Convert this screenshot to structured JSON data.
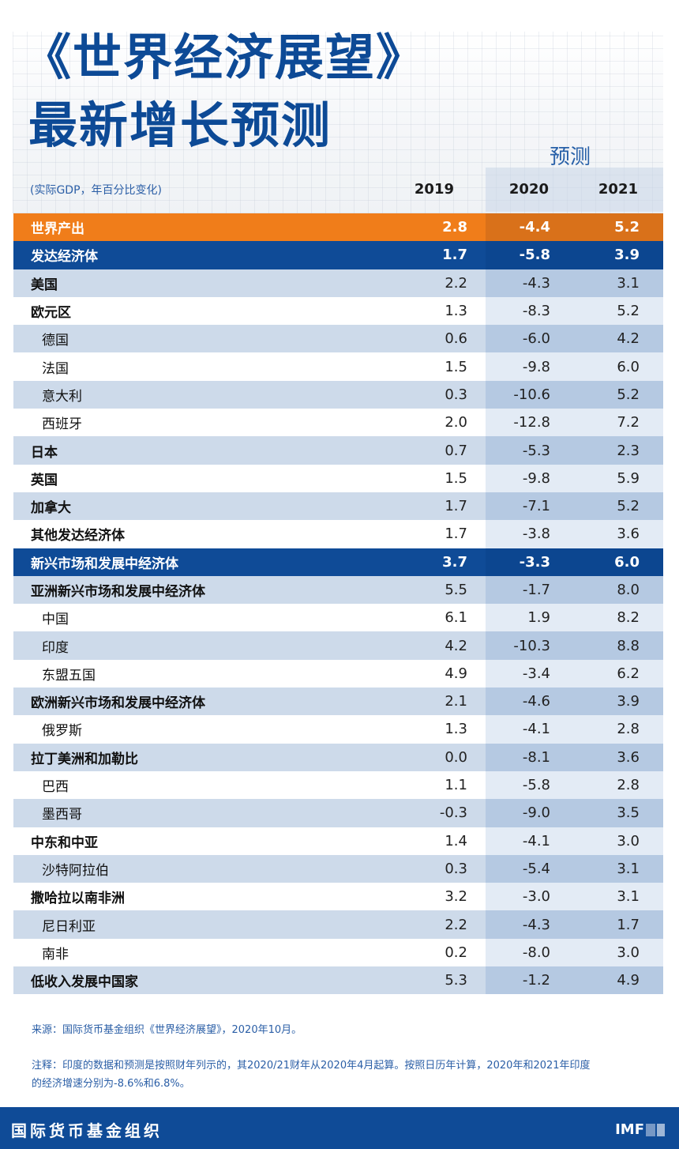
{
  "header": {
    "title_line1": "《世界经济展望》",
    "title_line2": "最新增长预测",
    "forecast_label": "预测",
    "units": "(实际GDP，年百分比变化)",
    "columns": [
      "2019",
      "2020",
      "2021"
    ]
  },
  "table": {
    "rows": [
      {
        "name": "世界产出",
        "v2019": "2.8",
        "v2020": "-4.4",
        "v2021": "5.2",
        "style": "world"
      },
      {
        "name": "发达经济体",
        "v2019": "1.7",
        "v2020": "-5.8",
        "v2021": "3.9",
        "style": "group"
      },
      {
        "name": "美国",
        "v2019": "2.2",
        "v2020": "-4.3",
        "v2021": "3.1",
        "style": "odd"
      },
      {
        "name": "欧元区",
        "v2019": "1.3",
        "v2020": "-8.3",
        "v2021": "5.2",
        "style": "even"
      },
      {
        "name": "德国",
        "v2019": "0.6",
        "v2020": "-6.0",
        "v2021": "4.2",
        "style": "odd indent"
      },
      {
        "name": "法国",
        "v2019": "1.5",
        "v2020": "-9.8",
        "v2021": "6.0",
        "style": "even indent"
      },
      {
        "name": "意大利",
        "v2019": "0.3",
        "v2020": "-10.6",
        "v2021": "5.2",
        "style": "odd indent"
      },
      {
        "name": "西班牙",
        "v2019": "2.0",
        "v2020": "-12.8",
        "v2021": "7.2",
        "style": "even indent"
      },
      {
        "name": "日本",
        "v2019": "0.7",
        "v2020": "-5.3",
        "v2021": "2.3",
        "style": "odd"
      },
      {
        "name": "英国",
        "v2019": "1.5",
        "v2020": "-9.8",
        "v2021": "5.9",
        "style": "even"
      },
      {
        "name": "加拿大",
        "v2019": "1.7",
        "v2020": "-7.1",
        "v2021": "5.2",
        "style": "odd"
      },
      {
        "name": "其他发达经济体",
        "v2019": "1.7",
        "v2020": "-3.8",
        "v2021": "3.6",
        "style": "even"
      },
      {
        "name": "新兴市场和发展中经济体",
        "v2019": "3.7",
        "v2020": "-3.3",
        "v2021": "6.0",
        "style": "group"
      },
      {
        "name": "亚洲新兴市场和发展中经济体",
        "v2019": "5.5",
        "v2020": "-1.7",
        "v2021": "8.0",
        "style": "odd"
      },
      {
        "name": "中国",
        "v2019": "6.1",
        "v2020": "1.9",
        "v2021": "8.2",
        "style": "even indent"
      },
      {
        "name": "印度",
        "v2019": "4.2",
        "v2020": "-10.3",
        "v2021": "8.8",
        "style": "odd indent"
      },
      {
        "name": "东盟五国",
        "v2019": "4.9",
        "v2020": "-3.4",
        "v2021": "6.2",
        "style": "even indent"
      },
      {
        "name": "欧洲新兴市场和发展中经济体",
        "v2019": "2.1",
        "v2020": "-4.6",
        "v2021": "3.9",
        "style": "odd"
      },
      {
        "name": "俄罗斯",
        "v2019": "1.3",
        "v2020": "-4.1",
        "v2021": "2.8",
        "style": "even indent"
      },
      {
        "name": "拉丁美洲和加勒比",
        "v2019": "0.0",
        "v2020": "-8.1",
        "v2021": "3.6",
        "style": "odd"
      },
      {
        "name": "巴西",
        "v2019": "1.1",
        "v2020": "-5.8",
        "v2021": "2.8",
        "style": "even indent"
      },
      {
        "name": "墨西哥",
        "v2019": "-0.3",
        "v2020": "-9.0",
        "v2021": "3.5",
        "style": "odd indent"
      },
      {
        "name": "中东和中亚",
        "v2019": "1.4",
        "v2020": "-4.1",
        "v2021": "3.0",
        "style": "even"
      },
      {
        "name": "沙特阿拉伯",
        "v2019": "0.3",
        "v2020": "-5.4",
        "v2021": "3.1",
        "style": "odd indent"
      },
      {
        "name": "撒哈拉以南非洲",
        "v2019": "3.2",
        "v2020": "-3.0",
        "v2021": "3.1",
        "style": "even"
      },
      {
        "name": "尼日利亚",
        "v2019": "2.2",
        "v2020": "-4.3",
        "v2021": "1.7",
        "style": "odd indent"
      },
      {
        "name": "南非",
        "v2019": "0.2",
        "v2020": "-8.0",
        "v2021": "3.0",
        "style": "even indent"
      },
      {
        "name": "低收入发展中国家",
        "v2019": "5.3",
        "v2020": "-1.2",
        "v2021": "4.9",
        "style": "odd"
      }
    ]
  },
  "footnotes": {
    "source": "来源：国际货币基金组织《世界经济展望》，2020年10月。",
    "note": "注释：印度的数据和预测是按照财年列示的，其2020/21财年从2020年4月起算。按照日历年计算，2020年和2021年印度的经济增速分别为-8.6%和6.8%。"
  },
  "footer": {
    "org": "国际货币基金组织",
    "logo": "IMF"
  },
  "colors": {
    "title_blue": "#0d4a96",
    "world_orange": "#f07d1a",
    "group_blue": "#0f4b97",
    "row_light": "#cddaea",
    "forecast_shade": "#b5c9e2"
  },
  "chart_data": {
    "type": "table",
    "title": "《世界经济展望》最新增长预测",
    "subtitle": "(实际GDP，年百分比变化)",
    "columns": [
      "",
      "2019",
      "2020",
      "2021"
    ],
    "forecast_columns": [
      "2020",
      "2021"
    ],
    "categories": [
      "世界产出",
      "发达经济体",
      "美国",
      "欧元区",
      "德国",
      "法国",
      "意大利",
      "西班牙",
      "日本",
      "英国",
      "加拿大",
      "其他发达经济体",
      "新兴市场和发展中经济体",
      "亚洲新兴市场和发展中经济体",
      "中国",
      "印度",
      "东盟五国",
      "欧洲新兴市场和发展中经济体",
      "俄罗斯",
      "拉丁美洲和加勒比",
      "巴西",
      "墨西哥",
      "中东和中亚",
      "沙特阿拉伯",
      "撒哈拉以南非洲",
      "尼日利亚",
      "南非",
      "低收入发展中国家"
    ],
    "series": [
      {
        "name": "2019",
        "values": [
          2.8,
          1.7,
          2.2,
          1.3,
          0.6,
          1.5,
          0.3,
          2.0,
          0.7,
          1.5,
          1.7,
          1.7,
          3.7,
          5.5,
          6.1,
          4.2,
          4.9,
          2.1,
          1.3,
          0.0,
          1.1,
          -0.3,
          1.4,
          0.3,
          3.2,
          2.2,
          0.2,
          5.3
        ]
      },
      {
        "name": "2020",
        "values": [
          -4.4,
          -5.8,
          -4.3,
          -8.3,
          -6.0,
          -9.8,
          -10.6,
          -12.8,
          -5.3,
          -9.8,
          -7.1,
          -3.8,
          -3.3,
          -1.7,
          1.9,
          -10.3,
          -3.4,
          -4.6,
          -4.1,
          -8.1,
          -5.8,
          -9.0,
          -4.1,
          -5.4,
          -3.0,
          -4.3,
          -8.0,
          -1.2
        ]
      },
      {
        "name": "2021",
        "values": [
          5.2,
          3.9,
          3.1,
          5.2,
          4.2,
          6.0,
          5.2,
          7.2,
          2.3,
          5.9,
          5.2,
          3.6,
          6.0,
          8.0,
          8.2,
          8.8,
          6.2,
          3.9,
          2.8,
          3.6,
          2.8,
          3.5,
          3.0,
          3.1,
          3.1,
          1.7,
          3.0,
          4.9
        ]
      }
    ],
    "source": "来源：国际货币基金组织《世界经济展望》，2020年10月。"
  }
}
